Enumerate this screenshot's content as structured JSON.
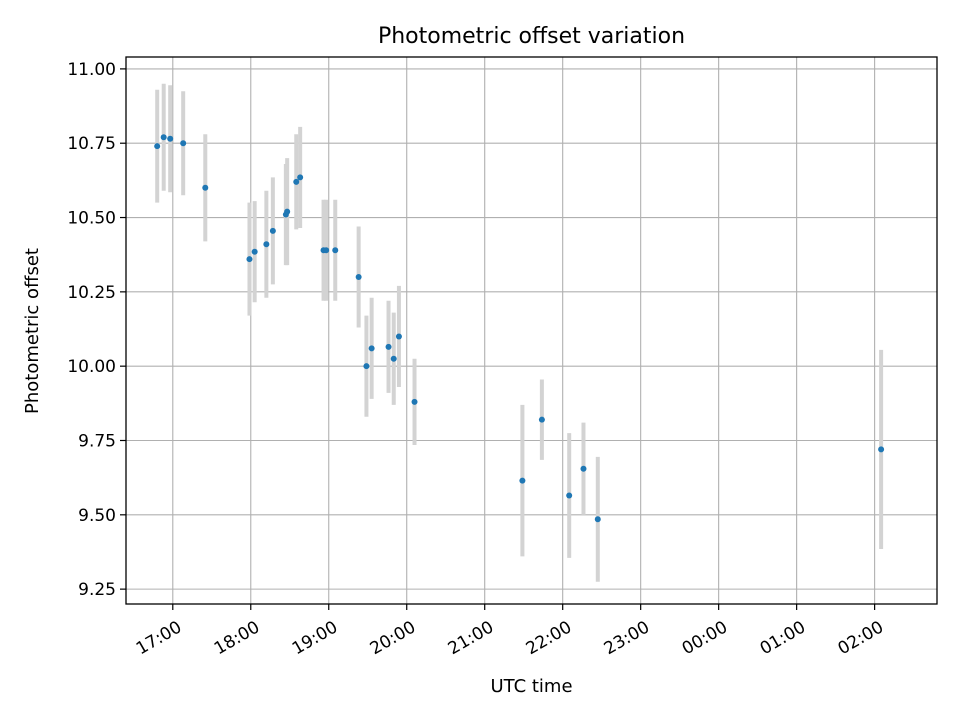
{
  "chart_data": {
    "type": "scatter",
    "title": "Photometric offset variation",
    "xlabel": "UTC time",
    "ylabel": "Photometric offset",
    "x_time_origin": "16:30",
    "xlim_hours": [
      -0.1,
      10.3
    ],
    "ylim": [
      9.2,
      11.04
    ],
    "grid": true,
    "y_ticks": [
      {
        "value": 9.25,
        "label": "9.25"
      },
      {
        "value": 9.5,
        "label": "9.50"
      },
      {
        "value": 9.75,
        "label": "9.75"
      },
      {
        "value": 10.0,
        "label": "10.00"
      },
      {
        "value": 10.25,
        "label": "10.25"
      },
      {
        "value": 10.5,
        "label": "10.50"
      },
      {
        "value": 10.75,
        "label": "10.75"
      },
      {
        "value": 11.0,
        "label": "11.00"
      }
    ],
    "x_ticks": [
      {
        "value": 0.5,
        "label": "17:00"
      },
      {
        "value": 1.5,
        "label": "18:00"
      },
      {
        "value": 2.5,
        "label": "19:00"
      },
      {
        "value": 3.5,
        "label": "20:00"
      },
      {
        "value": 4.5,
        "label": "21:00"
      },
      {
        "value": 5.5,
        "label": "22:00"
      },
      {
        "value": 6.5,
        "label": "23:00"
      },
      {
        "value": 7.5,
        "label": "00:00"
      },
      {
        "value": 8.5,
        "label": "01:00"
      },
      {
        "value": 9.5,
        "label": "02:00"
      }
    ],
    "point_color": "#1f77b4",
    "errorbar_color": "#d3d3d3",
    "points": [
      {
        "time": "16:48",
        "y": 10.74,
        "err": 0.19
      },
      {
        "time": "16:53",
        "y": 10.77,
        "err": 0.18
      },
      {
        "time": "16:58",
        "y": 10.765,
        "err": 0.18
      },
      {
        "time": "17:08",
        "y": 10.75,
        "err": 0.175
      },
      {
        "time": "17:25",
        "y": 10.6,
        "err": 0.18
      },
      {
        "time": "17:59",
        "y": 10.36,
        "err": 0.19
      },
      {
        "time": "18:03",
        "y": 10.385,
        "err": 0.17
      },
      {
        "time": "18:12",
        "y": 10.41,
        "err": 0.18
      },
      {
        "time": "18:17",
        "y": 10.455,
        "err": 0.18
      },
      {
        "time": "18:27",
        "y": 10.51,
        "err": 0.17
      },
      {
        "time": "18:28",
        "y": 10.52,
        "err": 0.18
      },
      {
        "time": "18:35",
        "y": 10.62,
        "err": 0.16
      },
      {
        "time": "18:38",
        "y": 10.635,
        "err": 0.17
      },
      {
        "time": "18:56",
        "y": 10.39,
        "err": 0.17
      },
      {
        "time": "18:58",
        "y": 10.39,
        "err": 0.17
      },
      {
        "time": "19:05",
        "y": 10.39,
        "err": 0.17
      },
      {
        "time": "19:23",
        "y": 10.3,
        "err": 0.17
      },
      {
        "time": "19:29",
        "y": 10.0,
        "err": 0.17
      },
      {
        "time": "19:33",
        "y": 10.06,
        "err": 0.17
      },
      {
        "time": "19:46",
        "y": 10.065,
        "err": 0.155
      },
      {
        "time": "19:50",
        "y": 10.025,
        "err": 0.155
      },
      {
        "time": "19:54",
        "y": 10.1,
        "err": 0.17
      },
      {
        "time": "20:06",
        "y": 9.88,
        "err": 0.145
      },
      {
        "time": "21:29",
        "y": 9.615,
        "err": 0.255
      },
      {
        "time": "21:44",
        "y": 9.82,
        "err": 0.135
      },
      {
        "time": "22:05",
        "y": 9.565,
        "err": 0.21
      },
      {
        "time": "22:16",
        "y": 9.655,
        "err": 0.155
      },
      {
        "time": "22:27",
        "y": 9.485,
        "err": 0.21
      },
      {
        "time": "02:05",
        "y": 9.72,
        "err": 0.335
      }
    ]
  }
}
